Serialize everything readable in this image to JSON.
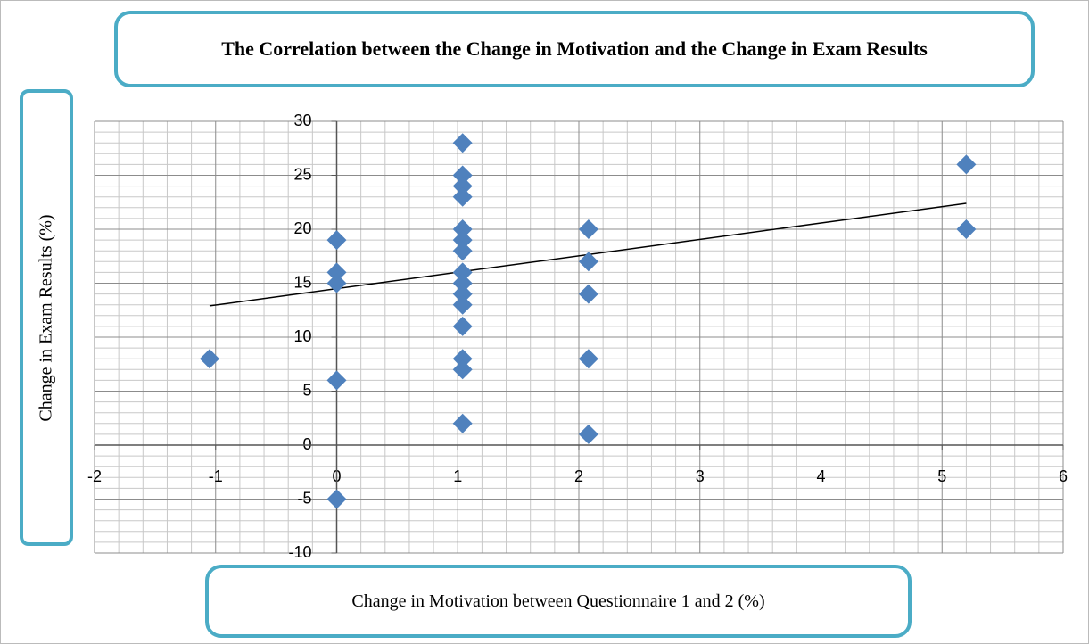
{
  "chart_data": {
    "type": "scatter",
    "title": "The Correlation between the Change in Motivation and the Change in Exam Results",
    "xlabel": "Change in Motivation between Questionnaire 1 and 2 (%)",
    "ylabel": "Change in Exam Results  (%)",
    "series": [
      {
        "color": "#4f81bd",
        "x": [
          -1.05,
          0,
          0,
          0,
          0,
          0,
          1.04,
          1.04,
          1.04,
          1.04,
          1.04,
          1.04,
          1.04,
          1.04,
          1.04,
          1.04,
          1.04,
          1.04,
          1.04,
          1.04,
          1.04,
          2.08,
          2.08,
          2.08,
          2.08,
          2.08,
          5.2,
          5.2
        ],
        "values": [
          8,
          19,
          16,
          15,
          6,
          -5,
          28,
          25,
          24,
          23,
          20,
          19,
          18,
          16,
          15,
          14,
          13,
          11,
          8,
          7,
          2,
          20,
          17,
          14,
          8,
          1,
          26,
          20
        ]
      }
    ],
    "trendline": {
      "color": "#000000",
      "x": [
        -1.05,
        5.2
      ],
      "values": [
        12.9,
        22.4
      ]
    },
    "xlim": [
      -2,
      6
    ],
    "xticks": [
      -2,
      -1,
      0,
      1,
      2,
      3,
      4,
      5,
      6
    ],
    "ylim": [
      -10,
      30
    ],
    "yticks": [
      -10,
      -5,
      0,
      5,
      10,
      15,
      20,
      25,
      30
    ],
    "grid": true
  }
}
